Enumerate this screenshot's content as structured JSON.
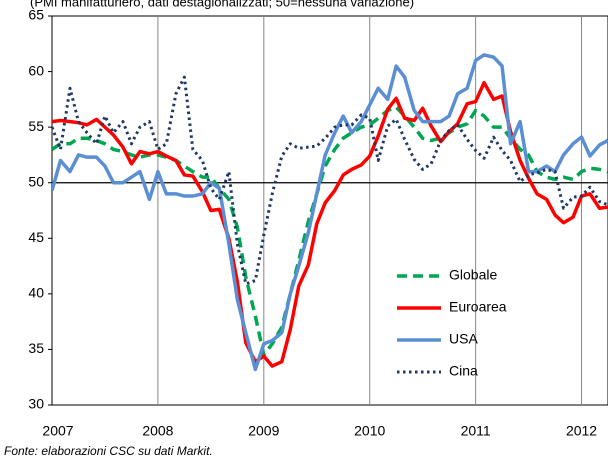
{
  "chart_data": {
    "type": "line",
    "subtitle": "(PMI manifatturiero, dati destagionalizzati; 50=nessuna variazione)",
    "source": "Fonte: elaborazioni CSC su dati Markit.",
    "x": [
      2007,
      2007.08,
      2007.17,
      2007.25,
      2007.33,
      2007.42,
      2007.5,
      2007.58,
      2007.67,
      2007.75,
      2007.83,
      2007.92,
      2008,
      2008.08,
      2008.17,
      2008.25,
      2008.33,
      2008.42,
      2008.5,
      2008.58,
      2008.67,
      2008.75,
      2008.83,
      2008.92,
      2009,
      2009.08,
      2009.17,
      2009.25,
      2009.33,
      2009.42,
      2009.5,
      2009.58,
      2009.67,
      2009.75,
      2009.83,
      2009.92,
      2010,
      2010.08,
      2010.17,
      2010.25,
      2010.33,
      2010.42,
      2010.5,
      2010.58,
      2010.67,
      2010.75,
      2010.83,
      2010.92,
      2011,
      2011.08,
      2011.17,
      2011.25,
      2011.33,
      2011.42,
      2011.5,
      2011.58,
      2011.67,
      2011.75,
      2011.83,
      2011.92,
      2012,
      2012.08,
      2012.17,
      2012.25
    ],
    "series": [
      {
        "name": "Globale",
        "color": "#00a651",
        "dash": "dashed",
        "values": [
          53,
          53.5,
          53.5,
          54,
          54,
          53.8,
          53.5,
          53,
          52.8,
          52.5,
          52.3,
          52.5,
          52.5,
          52.3,
          52,
          51.5,
          51,
          50.5,
          50.5,
          49.5,
          48.5,
          46,
          41.5,
          38,
          34.5,
          35.5,
          37,
          40,
          43,
          46.5,
          49,
          51.5,
          53,
          54,
          54.5,
          55,
          55.2,
          55.8,
          56.5,
          56.8,
          56,
          55,
          54,
          53.8,
          54,
          54.5,
          55,
          55.3,
          56.5,
          56,
          55,
          55,
          54,
          53,
          52.5,
          51,
          50.5,
          50.3,
          50.5,
          50.3,
          51,
          51.3,
          51.2,
          51
        ]
      },
      {
        "name": "Euroarea",
        "color": "#ff0000",
        "dash": "solid",
        "values": [
          55.5,
          55.6,
          55.5,
          55.4,
          55.2,
          55.7,
          55,
          54.3,
          53.2,
          51.7,
          52.8,
          52.6,
          52.8,
          52.4,
          52,
          50.7,
          50.6,
          49.2,
          47.5,
          47.6,
          45,
          41.1,
          35.6,
          33.9,
          34.4,
          33.5,
          33.9,
          36.8,
          40.7,
          42.6,
          46.3,
          48.2,
          49.3,
          50.7,
          51.2,
          51.6,
          52.4,
          54.2,
          56.6,
          57.6,
          55.8,
          55.6,
          56.7,
          55.1,
          53.7,
          54.6,
          55.3,
          57.1,
          57.3,
          59,
          57.5,
          57.8,
          54.6,
          52,
          50.4,
          49,
          48.5,
          47.1,
          46.4,
          46.9,
          48.8,
          49,
          47.7,
          47.8
        ]
      },
      {
        "name": "USA",
        "color": "#5b8fd4",
        "dash": "solid",
        "values": [
          49.3,
          52,
          51,
          52.5,
          52.3,
          52.3,
          51.5,
          50,
          50,
          50.5,
          51,
          48.5,
          51,
          49,
          49,
          48.8,
          48.8,
          49,
          50,
          49.5,
          44.5,
          39.5,
          36.5,
          33.2,
          35.5,
          35.8,
          36.5,
          40,
          42.5,
          45.5,
          49,
          52.5,
          54.5,
          56,
          54.5,
          55.5,
          57,
          58.5,
          57.5,
          60.5,
          59.5,
          56.5,
          55.5,
          55.5,
          55.5,
          56,
          58,
          58.5,
          61,
          61.5,
          61.3,
          60.5,
          53.5,
          55.5,
          51,
          51,
          51.5,
          51,
          52.5,
          53.5,
          54.1,
          52.4,
          53.4,
          53.8
        ]
      },
      {
        "name": "Cina",
        "color": "#1f3864",
        "dash": "dotted",
        "values": [
          55,
          53,
          58.5,
          55.5,
          54.5,
          53.5,
          56,
          54.5,
          55.5,
          53.5,
          55,
          55.5,
          53,
          53.5,
          58,
          59.5,
          53,
          52,
          49.5,
          48.5,
          51,
          44.5,
          40.9,
          41.2,
          45.3,
          49,
          52.4,
          53.5,
          53.1,
          53.2,
          53.3,
          54,
          55,
          55.2,
          55.2,
          56.1,
          55.8,
          52,
          55.1,
          55.7,
          53.9,
          52.1,
          51.2,
          51.7,
          53.8,
          54.7,
          55.2,
          53.9,
          52.9,
          52.2,
          54.1,
          52.9,
          52,
          50.1,
          50.7,
          50.9,
          51.2,
          51,
          47.7,
          48.7,
          48.8,
          49.6,
          48.3,
          48
        ]
      }
    ],
    "xlim": [
      2007,
      2012.25
    ],
    "xticks": [
      2007,
      2008,
      2009,
      2010,
      2011,
      2012
    ],
    "ylim": [
      30,
      65
    ],
    "yticks": [
      30,
      35,
      40,
      45,
      50,
      55,
      60,
      65
    ],
    "reference_line": 50,
    "grid": "x",
    "legend": "lower right"
  }
}
